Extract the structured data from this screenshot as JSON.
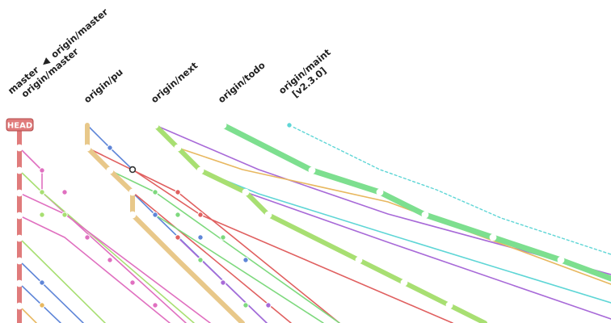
{
  "refs": {
    "master_line1": "master",
    "master_arrow": "◀",
    "master_line1b": "origin/master",
    "master_line2": "origin/master",
    "pu": "origin/pu",
    "next": "origin/next",
    "todo": "origin/todo",
    "maint_line1": "origin/maint",
    "maint_line2": "[v2.3.0]"
  },
  "head_badge": "HEAD",
  "colors": {
    "master": "#e07b7b",
    "pu": "#e8c88a",
    "next": "#a8df72",
    "todo": "#7ddf8f",
    "maint": "#5fd6d6",
    "pink": "#e070c0",
    "blue": "#5f86d8",
    "red": "#e06060",
    "purple": "#a86ad8",
    "orange": "#e8b860",
    "green": "#7ed97e",
    "cyan": "#5fd6d6"
  }
}
